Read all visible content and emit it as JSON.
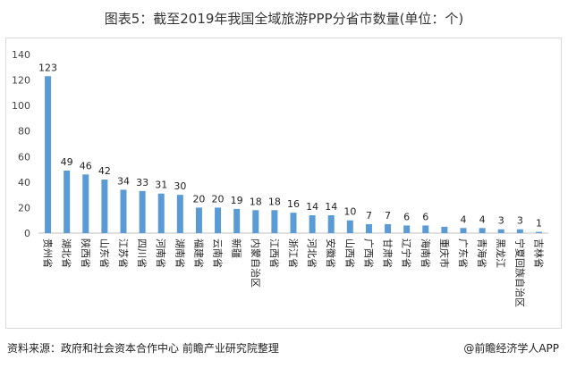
{
  "chart_data": {
    "type": "bar",
    "title": "图表5：截至2019年我国全域旅游PPP分省市数量(单位：个)",
    "categories": [
      "贵州省",
      "湖北省",
      "陕西省",
      "山东省",
      "江苏省",
      "四川省",
      "河南省",
      "湖南省",
      "福建省",
      "云南省",
      "新疆",
      "内蒙自治区",
      "江西省",
      "浙江省",
      "河北省",
      "安徽省",
      "山西省",
      "广西省",
      "甘肃省",
      "辽宁省",
      "海南省",
      "重庆市",
      "广东省",
      "青海省",
      "黑龙江",
      "宁夏回族自治区",
      "吉林省"
    ],
    "values": [
      123,
      49,
      46,
      42,
      34,
      33,
      31,
      30,
      20,
      20,
      19,
      18,
      18,
      16,
      14,
      14,
      10,
      7,
      7,
      6,
      6,
      5,
      4,
      4,
      3,
      3,
      1
    ],
    "data_labels": [
      "123",
      "49",
      "46",
      "42",
      "34",
      "33",
      "31",
      "30",
      "20",
      "20",
      "19",
      "18",
      "18",
      "16",
      "14",
      "14",
      "10",
      "7",
      "7",
      "6",
      "6",
      "",
      "4",
      "4",
      "3",
      "3",
      "1"
    ],
    "ylim": [
      0,
      140
    ],
    "yticks": [
      0,
      20,
      40,
      60,
      80,
      100,
      120,
      140
    ],
    "bar_color": "#5b9bd5",
    "grid": false,
    "legend": "none"
  },
  "footer": {
    "source": "资料来源：政府和社会资本合作中心 前瞻产业研究院整理",
    "brand": "@前瞻经济学人APP"
  }
}
